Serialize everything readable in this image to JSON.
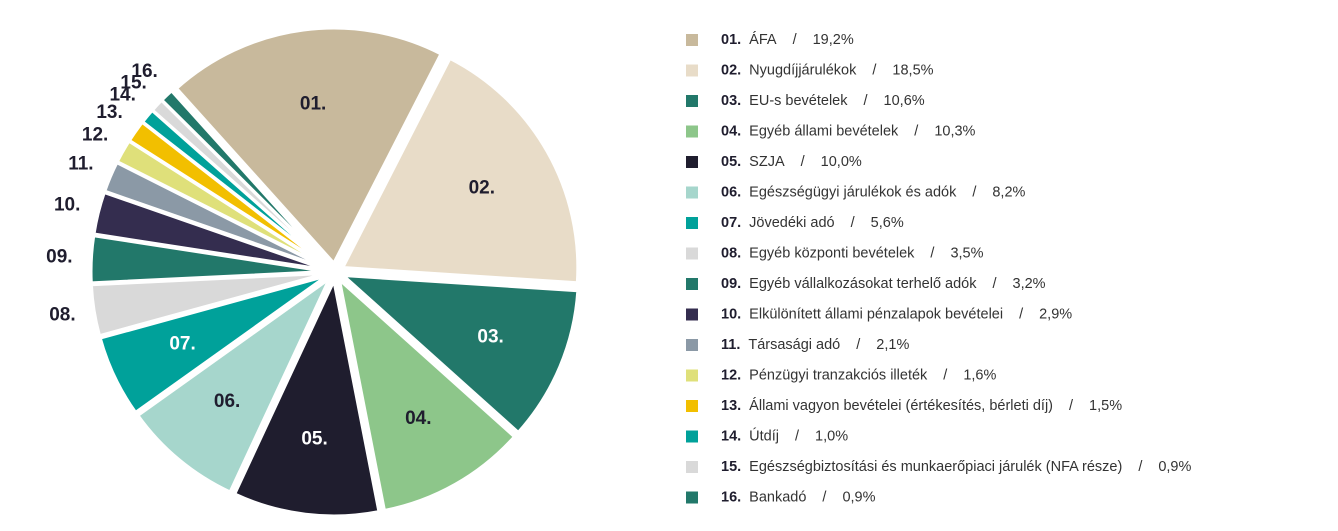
{
  "chart_data": {
    "type": "pie",
    "labels": [
      "01.",
      "02.",
      "03.",
      "04.",
      "05.",
      "06.",
      "07.",
      "08.",
      "09.",
      "10.",
      "11.",
      "12.",
      "13.",
      "14.",
      "15.",
      "16."
    ],
    "categories": [
      "ÁFA",
      "Nyugdíjjárulékok",
      "EU-s bevételek",
      "Egyéb állami bevételek",
      "SZJA",
      "Egészségügyi járulékok és adók",
      "Jövedéki adó",
      "Egyéb központi bevételek",
      "Egyéb vállalkozásokat terhelő adók",
      "Elkülönített állami pénzalapok bevételei",
      "Társasági adó",
      "Pénzügyi tranzakciós illeték",
      "Állami vagyon bevételei (értékesítés, bérleti díj)",
      "Útdíj",
      "Egészségbiztosítási és munkaerőpiaci járulék (NFA része)",
      "Bankadó"
    ],
    "values": [
      19.2,
      18.5,
      10.6,
      10.3,
      10.0,
      8.2,
      5.6,
      3.5,
      3.2,
      2.9,
      2.1,
      1.6,
      1.5,
      1.0,
      0.9,
      0.9
    ],
    "value_labels": [
      "19,2%",
      "18,5%",
      "10,6%",
      "10,3%",
      "10,0%",
      "8,2%",
      "5,6%",
      "3,5%",
      "3,2%",
      "2,9%",
      "2,1%",
      "1,6%",
      "1,5%",
      "1,0%",
      "0,9%",
      "0,9%"
    ],
    "legend_separator": "/",
    "colors": [
      "#c8b99c",
      "#e8dcc8",
      "#22786a",
      "#8dc68a",
      "#1f1d2e",
      "#a6d6cc",
      "#00a19a",
      "#d9d9d9",
      "#22786a",
      "#342d4f",
      "#8b99a6",
      "#dfe07a",
      "#f2bf00",
      "#00a19a",
      "#d9d9d9",
      "#22786a"
    ],
    "legend": "right"
  }
}
